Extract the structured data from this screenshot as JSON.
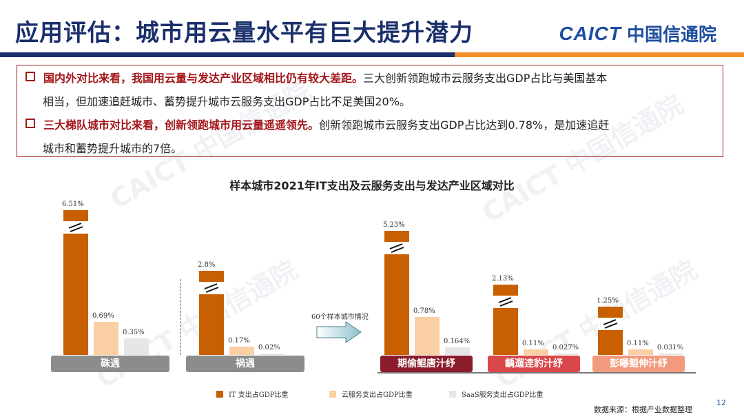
{
  "header": {
    "title": "应用评估：城市用云量水平有巨大提升潜力",
    "logo_en": "CAICT",
    "logo_cn": "中国信通院"
  },
  "summary": {
    "bullets": [
      {
        "highlight": "国内外对比来看，我国用云量与发达产业区域相比仍有较大差距。",
        "text1": "三大创新领跑城市云服务支出GDP占比与美国基本",
        "text2": "相当，但加速追赶城市、蓄势提升城市云服务支出GDP占比不足美国20%。"
      },
      {
        "highlight": "三大梯队城市对比来看，创新领跑城市用云量遥遥领先。",
        "text1": "创新领跑城市云服务支出GDP占比达到0.78%，是加速追赶",
        "text2": "城市和蓄势提升城市的7倍。"
      }
    ]
  },
  "chart_data": {
    "type": "bar",
    "title": "样本城市2021年IT支出及云服务支出与发达产业区域对比",
    "categories": [
      "硃遇",
      "祸遇",
      "期偷鲲唐汁纾",
      "齲遛逹豹汁纾",
      "彭曝鲲伸汁纾"
    ],
    "series": [
      {
        "name": "IT 支出占GDP比重",
        "values": [
          6.51,
          2.8,
          5.23,
          2.13,
          1.25
        ],
        "labels": [
          "6.51%",
          "2.8%",
          "5.23%",
          "2.13%",
          "1.25%"
        ]
      },
      {
        "name": "云服务支出占GDP比重",
        "values": [
          0.69,
          0.17,
          0.78,
          0.11,
          0.11
        ],
        "labels": [
          "0.69%",
          "0.17%",
          "0.78%",
          "0.11%",
          "0.11%"
        ]
      },
      {
        "name": "SaaS服务支出占GDP比重",
        "values": [
          0.35,
          0.02,
          0.164,
          0.027,
          0.031
        ],
        "labels": [
          "0.35%",
          "0.02%",
          "0.164%",
          "0.027%",
          "0.031%"
        ]
      }
    ],
    "annotation": "60个样本城市情况",
    "legend_position": "bottom",
    "colors": {
      "it": "#c85f00",
      "cloud": "#fbcfa4",
      "saas": "#e6e6e6"
    }
  },
  "footer": {
    "source": "数据来源：根据产业数据整理",
    "page": "12"
  },
  "watermark": {
    "text": "CAICT 中国信通院"
  }
}
